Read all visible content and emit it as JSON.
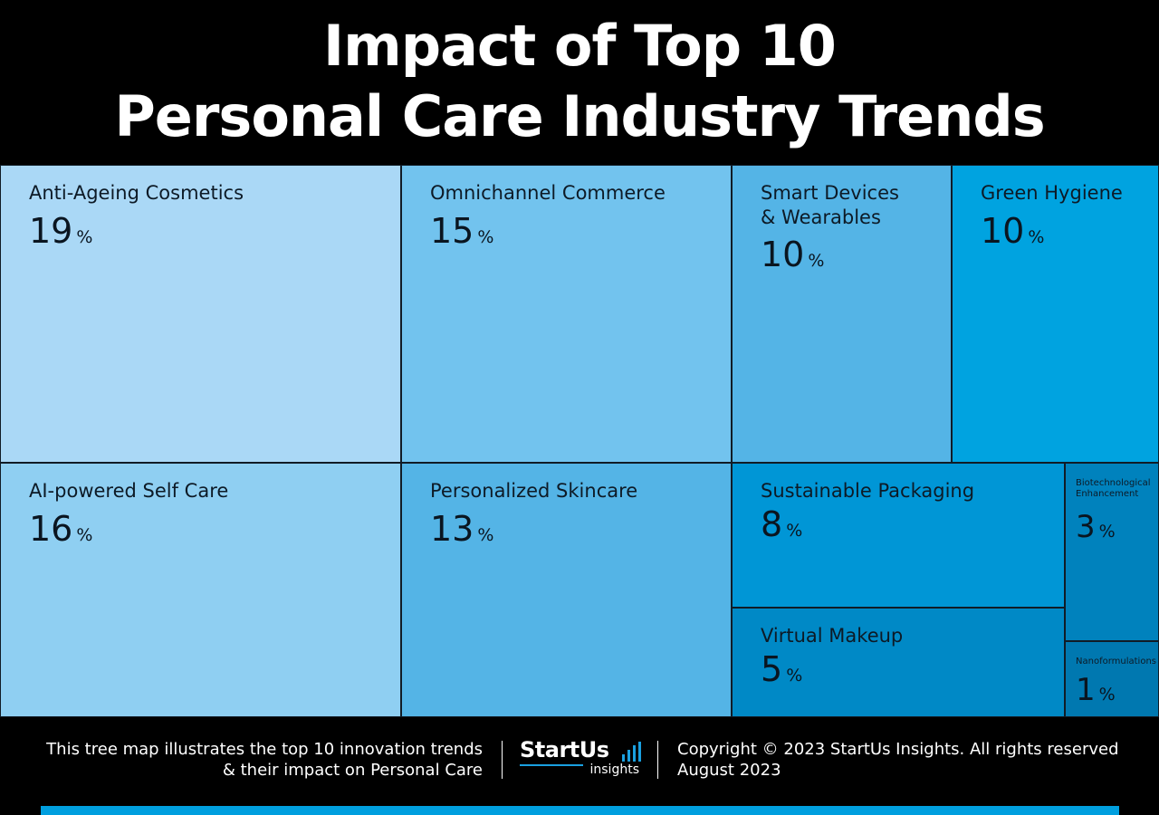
{
  "title": {
    "line1": "Impact of Top 10",
    "line2": "Personal Care Industry Trends"
  },
  "chart_data": {
    "type": "treemap",
    "unit": "%",
    "items": [
      {
        "name": "Anti-Ageing Cosmetics",
        "value": 19,
        "color": "#aad8f6"
      },
      {
        "name": "AI-powered Self Care",
        "value": 16,
        "color": "#8fcff2"
      },
      {
        "name": "Omnichannel Commerce",
        "value": 15,
        "color": "#72c3ee"
      },
      {
        "name": "Personalized Skincare",
        "value": 13,
        "color": "#54b4e6"
      },
      {
        "name": "Smart Devices\n& Wearables",
        "value": 10,
        "color": "#54b4e6"
      },
      {
        "name": "Green Hygiene",
        "value": 10,
        "color": "#00a3e0"
      },
      {
        "name": "Sustainable Packaging",
        "value": 8,
        "color": "#0096d6"
      },
      {
        "name": "Virtual Makeup",
        "value": 5,
        "color": "#0089c6"
      },
      {
        "name": "Biotechnological\nEnhancement",
        "value": 3,
        "color": "#0082bd"
      },
      {
        "name": "Nanoformulations",
        "value": 1,
        "color": "#0078b0"
      }
    ]
  },
  "footer": {
    "description": "This tree map illustrates the top 10 innovation trends\n& their impact on Personal Care",
    "logo_main": "StartUs",
    "logo_sub": "insights",
    "copyright": "Copyright © 2023 StartUs Insights. All rights reserved",
    "date": "August 2023",
    "accent_color": "#009fdf"
  }
}
